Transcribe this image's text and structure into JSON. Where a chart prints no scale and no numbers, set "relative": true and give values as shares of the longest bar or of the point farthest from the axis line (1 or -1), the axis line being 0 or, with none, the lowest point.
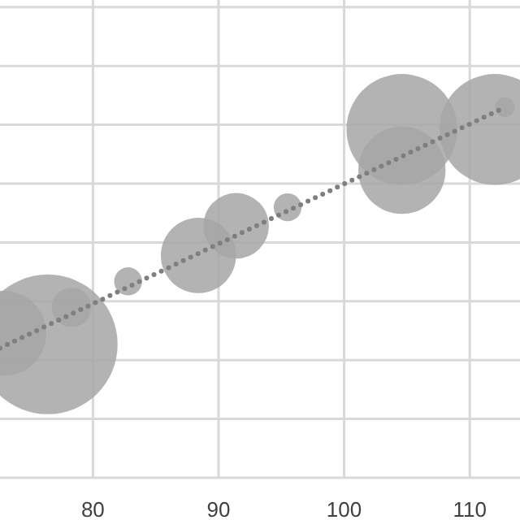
{
  "chart_data": {
    "type": "bubble",
    "relative": true,
    "xlim": [
      72.6,
      114
    ],
    "xticks": [
      80,
      90,
      100,
      110
    ],
    "grid": true,
    "series": [
      {
        "color": "#a6a6a6",
        "x": [
          72.9,
          76.4,
          78.3,
          82.8,
          88.4,
          91.4,
          95.5,
          104.6,
          104.6,
          112,
          112.8
        ],
        "values": [
          0.39,
          0.36,
          0.46,
          0.53,
          0.6,
          0.68,
          0.73,
          0.94,
          0.83,
          0.94,
          1
        ],
        "sizes": [
          0.37,
          1,
          0.08,
          0.04,
          0.29,
          0.22,
          0.04,
          0.63,
          0.39,
          0.63,
          0.02
        ]
      },
      {
        "type": "line",
        "color": "#7f7f7f",
        "line_style": "dotted",
        "marker": "none",
        "x": [
          72.6,
          112.8
        ],
        "values": [
          0.35,
          1
        ]
      }
    ]
  }
}
